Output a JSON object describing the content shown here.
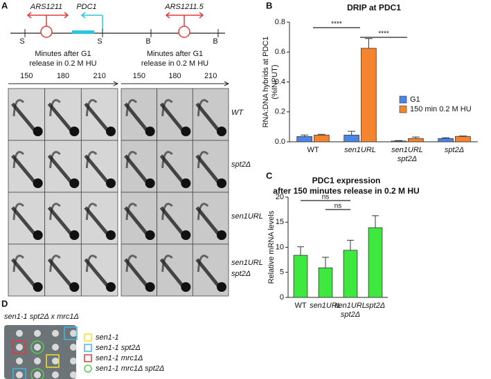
{
  "panel_a": {
    "letter": "A",
    "map": {
      "features": [
        {
          "text": "ARS1211",
          "color": "#e03a3a"
        },
        {
          "text": "PDC1",
          "color": "#29c6e0"
        },
        {
          "text": "ARS1211.5",
          "color": "#e03a3a"
        }
      ],
      "sites": [
        "S",
        "S",
        "B",
        "B"
      ]
    },
    "blocks": [
      {
        "heading": [
          "Minutes after G1",
          "release in 0.2 M HU"
        ],
        "times": [
          "150",
          "180",
          "210"
        ]
      },
      {
        "heading": [
          "Minutes after G1",
          "release in 0.2 M HU"
        ],
        "times": [
          "150",
          "180",
          "210"
        ]
      }
    ],
    "rows": [
      [
        "WT"
      ],
      [
        "spt2Δ"
      ],
      [
        "sen1URL"
      ],
      [
        "sen1URL",
        "spt2Δ"
      ]
    ]
  },
  "panel_d": {
    "letter": "D",
    "title": "sen1-1 spt2Δ x mrc1Δ",
    "legend": [
      {
        "text": "sen1-1",
        "marker": "square",
        "color": "#f2e12a"
      },
      {
        "text": "sen1-1 spt2Δ",
        "marker": "square",
        "color": "#3fb6ea"
      },
      {
        "text": "sen1-1 mrc1Δ",
        "marker": "square",
        "color": "#e03a3a"
      },
      {
        "text": "sen1-1 mrc1Δ spt2Δ",
        "marker": "circle",
        "color": "#4fd14f"
      }
    ]
  },
  "chart_data": [
    {
      "type": "bar",
      "letter": "B",
      "title": "DRIP  at PDC1",
      "y_label": [
        "RNA:DNA hybrids at PDC1",
        "(%INPUT)"
      ],
      "categories": [
        "WT",
        "sen1URL",
        "sen1URL spt2Δ",
        "spt2Δ"
      ],
      "series": [
        {
          "name": "G1",
          "color": "#4a86e8",
          "values": [
            0.035,
            0.045,
            0.005,
            0.022
          ],
          "errors": [
            0.01,
            0.025,
            0.003,
            0.005
          ]
        },
        {
          "name": "150 min 0.2 M HU",
          "color": "#f5842e",
          "values": [
            0.045,
            0.625,
            0.022,
            0.036
          ],
          "errors": [
            0.005,
            0.065,
            0.01,
            0.003
          ]
        }
      ],
      "ylim": [
        0,
        0.8
      ],
      "yticks": [
        {
          "value": 0,
          "label": "0.0"
        },
        0.2,
        0.4,
        0.6,
        0.8
      ],
      "grid": false,
      "legend": "center right",
      "annotations": [
        "****",
        "****"
      ]
    },
    {
      "type": "bar",
      "letter": "C",
      "title": "PDC1 expression",
      "subtitle": "after 150 minutes release in 0.2 M HU",
      "y_label": [
        "Relative mRNA levels"
      ],
      "categories": [
        "WT",
        "sen1URL",
        "sen1URL spt2Δ",
        "spt2Δ"
      ],
      "values": [
        8.4,
        5.9,
        9.4,
        13.9
      ],
      "errors": [
        1.7,
        2.1,
        2.0,
        2.4
      ],
      "color": "#3ee83e",
      "ylim": [
        0,
        20
      ],
      "yticks": [
        0,
        5,
        10,
        15,
        20
      ],
      "grid": false,
      "annotations": [
        "ns",
        "ns"
      ]
    }
  ]
}
